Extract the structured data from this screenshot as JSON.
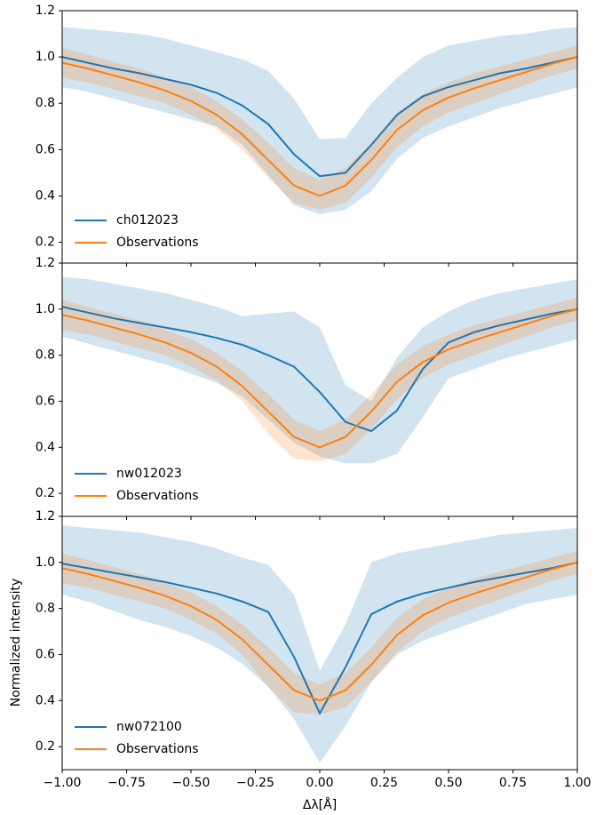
{
  "chart_data": [
    {
      "type": "line",
      "x": [
        -1,
        -0.9,
        -0.8,
        -0.7,
        -0.6,
        -0.5,
        -0.4,
        -0.3,
        -0.2,
        -0.1,
        0,
        0.1,
        0.2,
        0.3,
        0.4,
        0.5,
        0.6,
        0.7,
        0.8,
        0.9,
        1
      ],
      "xlim": [
        -1,
        1
      ],
      "ylim": [
        0.11,
        1.2
      ],
      "yticks": [
        0.2,
        0.4,
        0.6,
        {
          "value": 1,
          "label": "1.0"
        },
        1.2,
        0.8
      ],
      "legend": "lower left",
      "series": [
        {
          "name": "ch012023",
          "color": "#1f77b4",
          "values": [
            1.0,
            0.975,
            0.95,
            0.93,
            0.905,
            0.88,
            0.845,
            0.79,
            0.71,
            0.58,
            0.485,
            0.5,
            0.62,
            0.75,
            0.83,
            0.87,
            0.9,
            0.93,
            0.95,
            0.975,
            1.0
          ],
          "upper": [
            1.13,
            1.12,
            1.11,
            1.1,
            1.08,
            1.05,
            1.02,
            0.99,
            0.94,
            0.82,
            0.645,
            0.65,
            0.8,
            0.91,
            1.0,
            1.05,
            1.07,
            1.09,
            1.1,
            1.12,
            1.13
          ],
          "lower": [
            0.87,
            0.85,
            0.82,
            0.79,
            0.76,
            0.73,
            0.7,
            0.62,
            0.49,
            0.36,
            0.32,
            0.34,
            0.42,
            0.56,
            0.65,
            0.7,
            0.74,
            0.78,
            0.81,
            0.84,
            0.87
          ]
        },
        {
          "name": "Observations",
          "color": "#ff7f0e",
          "values": [
            0.975,
            0.95,
            0.92,
            0.89,
            0.855,
            0.81,
            0.75,
            0.665,
            0.555,
            0.445,
            0.4,
            0.445,
            0.555,
            0.685,
            0.77,
            0.825,
            0.865,
            0.9,
            0.935,
            0.97,
            1.0
          ],
          "upper": [
            1.04,
            1.01,
            0.98,
            0.95,
            0.91,
            0.87,
            0.81,
            0.73,
            0.63,
            0.52,
            0.47,
            0.52,
            0.63,
            0.76,
            0.84,
            0.89,
            0.93,
            0.96,
            0.99,
            1.02,
            1.05
          ],
          "lower": [
            0.91,
            0.89,
            0.86,
            0.83,
            0.8,
            0.75,
            0.69,
            0.6,
            0.48,
            0.37,
            0.34,
            0.37,
            0.48,
            0.61,
            0.7,
            0.76,
            0.8,
            0.84,
            0.88,
            0.92,
            0.95
          ]
        }
      ]
    },
    {
      "type": "line",
      "x": [
        -1,
        -0.9,
        -0.8,
        -0.7,
        -0.6,
        -0.5,
        -0.4,
        -0.3,
        -0.2,
        -0.1,
        0,
        0.1,
        0.2,
        0.3,
        0.4,
        0.5,
        0.6,
        0.7,
        0.8,
        0.9,
        1
      ],
      "xlim": [
        -1,
        1
      ],
      "ylim": [
        0.1,
        1.2
      ],
      "yticks": [
        0.2,
        0.4,
        0.6,
        0.8,
        {
          "value": 1,
          "label": "1.0"
        },
        1.2
      ],
      "legend": "lower left",
      "series": [
        {
          "name": "nw012023",
          "color": "#1f77b4",
          "values": [
            1.01,
            0.985,
            0.96,
            0.94,
            0.92,
            0.9,
            0.875,
            0.845,
            0.8,
            0.75,
            0.64,
            0.51,
            0.47,
            0.56,
            0.74,
            0.855,
            0.9,
            0.93,
            0.955,
            0.98,
            1.0
          ],
          "upper": [
            1.14,
            1.13,
            1.11,
            1.09,
            1.07,
            1.04,
            1.01,
            0.97,
            0.98,
            0.99,
            0.92,
            0.67,
            0.6,
            0.79,
            0.92,
            0.99,
            1.04,
            1.07,
            1.09,
            1.11,
            1.13
          ],
          "lower": [
            0.88,
            0.85,
            0.82,
            0.79,
            0.76,
            0.72,
            0.68,
            0.62,
            0.52,
            0.42,
            0.36,
            0.33,
            0.33,
            0.37,
            0.53,
            0.7,
            0.74,
            0.78,
            0.81,
            0.84,
            0.87
          ]
        },
        {
          "name": "Observations",
          "color": "#ff7f0e",
          "values": [
            0.975,
            0.95,
            0.92,
            0.89,
            0.855,
            0.81,
            0.75,
            0.665,
            0.555,
            0.445,
            0.4,
            0.445,
            0.555,
            0.685,
            0.77,
            0.825,
            0.865,
            0.9,
            0.935,
            0.97,
            1.0
          ],
          "upper": [
            1.04,
            1.01,
            0.98,
            0.95,
            0.91,
            0.87,
            0.81,
            0.73,
            0.63,
            0.52,
            0.47,
            0.52,
            0.63,
            0.76,
            0.84,
            0.89,
            0.93,
            0.96,
            0.99,
            1.02,
            1.05
          ],
          "lower": [
            0.91,
            0.89,
            0.86,
            0.83,
            0.8,
            0.75,
            0.69,
            0.6,
            0.46,
            0.35,
            0.34,
            0.37,
            0.48,
            0.61,
            0.7,
            0.76,
            0.8,
            0.84,
            0.88,
            0.92,
            0.95
          ]
        }
      ]
    },
    {
      "type": "line",
      "x": [
        -1,
        -0.9,
        -0.8,
        -0.7,
        -0.6,
        -0.5,
        -0.4,
        -0.3,
        -0.2,
        -0.1,
        0,
        0.1,
        0.2,
        0.3,
        0.4,
        0.5,
        0.6,
        0.7,
        0.8,
        0.9,
        1
      ],
      "xlim": [
        -1,
        1
      ],
      "ylim": [
        0.1,
        1.2
      ],
      "xticks": [
        {
          "value": -1,
          "label": "−1.00"
        },
        {
          "value": -0.75,
          "label": "−0.75"
        },
        {
          "value": -0.5,
          "label": "−0.50"
        },
        {
          "value": -0.25,
          "label": "−0.25"
        },
        {
          "value": 0,
          "label": "0.00"
        },
        {
          "value": 0.25,
          "label": "0.25"
        },
        {
          "value": 0.5,
          "label": "0.50"
        },
        {
          "value": 0.75,
          "label": "0.75"
        },
        {
          "value": 1,
          "label": "1.00"
        }
      ],
      "yticks": [
        0.2,
        0.4,
        0.6,
        0.8,
        {
          "value": 1,
          "label": "1.0"
        },
        1.2
      ],
      "xlabel": "Δλ[Å]",
      "ylabel": "Normalized intensity",
      "legend": "lower left",
      "series": [
        {
          "name": "nw072100",
          "color": "#1f77b4",
          "values": [
            0.995,
            0.975,
            0.955,
            0.935,
            0.915,
            0.89,
            0.865,
            0.83,
            0.785,
            0.59,
            0.345,
            0.545,
            0.775,
            0.83,
            0.865,
            0.89,
            0.915,
            0.935,
            0.955,
            0.975,
            1.0
          ],
          "upper": [
            1.16,
            1.15,
            1.14,
            1.13,
            1.11,
            1.09,
            1.06,
            1.02,
            0.99,
            0.86,
            0.53,
            0.73,
            1.0,
            1.04,
            1.06,
            1.08,
            1.1,
            1.12,
            1.13,
            1.14,
            1.15
          ],
          "lower": [
            0.86,
            0.83,
            0.79,
            0.75,
            0.72,
            0.68,
            0.63,
            0.56,
            0.46,
            0.32,
            0.13,
            0.29,
            0.48,
            0.6,
            0.66,
            0.7,
            0.74,
            0.78,
            0.82,
            0.84,
            0.86
          ]
        },
        {
          "name": "Observations",
          "color": "#ff7f0e",
          "values": [
            0.975,
            0.95,
            0.92,
            0.89,
            0.855,
            0.81,
            0.75,
            0.665,
            0.555,
            0.445,
            0.4,
            0.445,
            0.555,
            0.685,
            0.77,
            0.825,
            0.865,
            0.9,
            0.935,
            0.97,
            1.0
          ],
          "upper": [
            1.04,
            1.01,
            0.98,
            0.95,
            0.91,
            0.87,
            0.81,
            0.73,
            0.63,
            0.52,
            0.47,
            0.52,
            0.63,
            0.76,
            0.84,
            0.89,
            0.93,
            0.96,
            0.99,
            1.02,
            1.05
          ],
          "lower": [
            0.91,
            0.89,
            0.86,
            0.83,
            0.8,
            0.75,
            0.69,
            0.6,
            0.46,
            0.35,
            0.34,
            0.37,
            0.48,
            0.61,
            0.7,
            0.76,
            0.8,
            0.84,
            0.88,
            0.92,
            0.95
          ]
        }
      ]
    }
  ]
}
